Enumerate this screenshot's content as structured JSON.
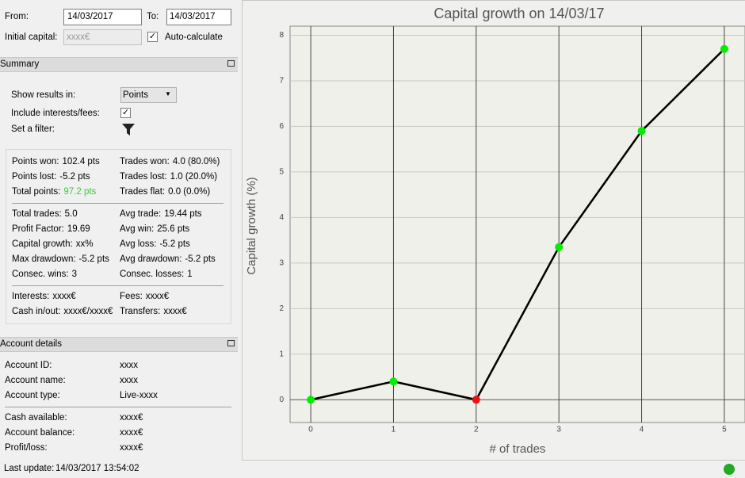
{
  "controls": {
    "from_label": "From:",
    "from_date": "14/03/2017",
    "to_label": "To:",
    "to_date": "14/03/2017",
    "initial_capital_label": "Initial capital:",
    "initial_capital_placeholder": "xxxx€",
    "auto_calculate": "Auto-calculate"
  },
  "summary": {
    "title": "Summary",
    "show_results_label": "Show results in:",
    "show_results_value": "Points",
    "include_fees_label": "Include interests/fees:",
    "filter_label": "Set a filter:",
    "stats": [
      [
        [
          {
            "label": "Points won:",
            "value": "102.4 pts"
          },
          {
            "label": "Trades won:",
            "value": "4.0 (80.0%)"
          }
        ],
        [
          {
            "label": "Points lost:",
            "value": "-5.2 pts"
          },
          {
            "label": "Trades lost:",
            "value": "1.0 (20.0%)"
          }
        ],
        [
          {
            "label": "Total points:",
            "value": "97.2 pts"
          },
          {
            "label": "Trades flat:",
            "value": "0.0 (0.0%)"
          }
        ]
      ],
      [
        [
          {
            "label": "Total trades:",
            "value": "5.0"
          },
          {
            "label": "Avg trade:",
            "value": "19.44 pts"
          }
        ],
        [
          {
            "label": "Profit Factor:",
            "value": "19.69"
          },
          {
            "label": "Avg win:",
            "value": "25.6 pts"
          }
        ],
        [
          {
            "label": "Capital growth:",
            "value": "xx%"
          },
          {
            "label": "Avg loss:",
            "value": "-5.2 pts"
          }
        ],
        [
          {
            "label": "Max drawdown:",
            "value": "-5.2 pts"
          },
          {
            "label": "Avg drawdown:",
            "value": "-5.2 pts"
          }
        ],
        [
          {
            "label": "Consec. wins:",
            "value": "3"
          },
          {
            "label": "Consec. losses:",
            "value": "1"
          }
        ]
      ],
      [
        [
          {
            "label": "Interests:",
            "value": "xxxx€"
          },
          {
            "label": "Fees:",
            "value": "xxxx€"
          }
        ],
        [
          {
            "label": "Cash in/out:",
            "value": "xxxx€/xxxx€"
          },
          {
            "label": "Transfers:",
            "value": "xxxx€"
          }
        ]
      ]
    ]
  },
  "account": {
    "title": "Account details",
    "groups": [
      [
        {
          "label": "Account ID:",
          "value": "xxxx"
        },
        {
          "label": "Account name:",
          "value": "xxxx"
        },
        {
          "label": "Account type:",
          "value": "Live-xxxx"
        }
      ],
      [
        {
          "label": "Cash available:",
          "value": "xxxx€"
        },
        {
          "label": "Account balance:",
          "value": "xxxx€"
        },
        {
          "label": "Profit/loss:",
          "value": "xxxx€"
        }
      ]
    ]
  },
  "footer": {
    "last_update_label": "Last update:",
    "last_update_value": "14/03/2017 13:54:02"
  },
  "chart_data": {
    "type": "line",
    "title": "Capital growth on 14/03/17",
    "x_label": "# of trades",
    "y_label": "Capital growth (%)",
    "x": [
      0,
      1,
      2,
      3,
      4,
      5
    ],
    "series": [
      {
        "color": "#000000",
        "values": [
          0,
          0.4,
          0,
          3.35,
          5.9,
          7.7
        ],
        "point_colors": [
          "#00ee00",
          "#00ee00",
          "#ee1111",
          "#00ee00",
          "#00ee00",
          "#00ee00"
        ]
      }
    ],
    "xlim": [
      -0.25,
      5.25
    ],
    "ylim": [
      -0.5,
      8.2
    ],
    "xticks": [
      0,
      1,
      2,
      3,
      4,
      5
    ],
    "yticks": [
      0,
      1,
      2,
      3,
      4,
      5,
      6,
      7,
      8
    ],
    "grid": true
  }
}
